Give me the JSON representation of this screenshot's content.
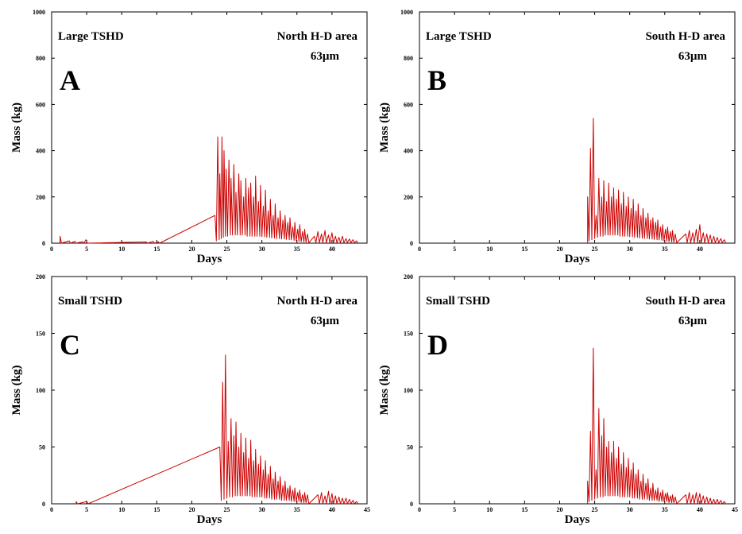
{
  "chart_data": [
    {
      "type": "line",
      "panel_letter": "A",
      "vessel_label": "Large TSHD",
      "area_label": "North H-D area",
      "grain_label": "63µm",
      "xlabel": "Days",
      "ylabel": "Mass (kg)",
      "xlim": [
        0,
        45
      ],
      "ylim": [
        0,
        1000
      ],
      "xticks": [
        0,
        5,
        10,
        15,
        20,
        25,
        30,
        35,
        40
      ],
      "yticks": [
        0,
        200,
        400,
        600,
        800,
        1000
      ],
      "line_color": "#cc0000",
      "series": [
        {
          "x": [
            1.2,
            1.4,
            2.5,
            2.7,
            3.3,
            3.5,
            4.4,
            4.6,
            4.9,
            5.1,
            13.5,
            13.7,
            14.5,
            14.7,
            15.2,
            15.4,
            23.3,
            23.5,
            23.7,
            23.9,
            24.0,
            24.2,
            24.3,
            24.5,
            24.6,
            24.8,
            24.9,
            25.1,
            25.3,
            25.5,
            25.6,
            25.8,
            26.0,
            26.2,
            26.3,
            26.5,
            26.7,
            26.9,
            27.0,
            27.2,
            27.4,
            27.6,
            27.7,
            27.9,
            28.1,
            28.3,
            28.4,
            28.6,
            28.8,
            29.0,
            29.1,
            29.3,
            29.5,
            29.7,
            29.8,
            30.0,
            30.2,
            30.4,
            30.5,
            30.7,
            30.9,
            31.1,
            31.2,
            31.4,
            31.6,
            31.8,
            31.9,
            32.1,
            32.3,
            32.5,
            32.6,
            32.8,
            33.0,
            33.2,
            33.3,
            33.5,
            33.7,
            33.9,
            34.0,
            34.2,
            34.4,
            34.6,
            34.7,
            34.9,
            35.1,
            35.3,
            35.4,
            35.6,
            35.8,
            36.0,
            36.1,
            36.3,
            36.5,
            36.7,
            37.5,
            37.7,
            38.0,
            38.2,
            38.5,
            38.7,
            39.0,
            39.2,
            39.5,
            39.7,
            40.0,
            40.2,
            40.5,
            40.7,
            41.0,
            41.2,
            41.5,
            41.7,
            42.0,
            42.2,
            42.5,
            42.7,
            43.0,
            43.2,
            43.5,
            43.7
          ],
          "y": [
            30,
            0,
            10,
            0,
            8,
            0,
            6,
            0,
            15,
            0,
            5,
            0,
            8,
            0,
            6,
            0,
            120,
            10,
            460,
            15,
            300,
            20,
            460,
            25,
            400,
            30,
            320,
            30,
            360,
            35,
            280,
            35,
            340,
            35,
            220,
            35,
            300,
            35,
            270,
            35,
            200,
            35,
            280,
            30,
            240,
            30,
            260,
            30,
            200,
            30,
            290,
            30,
            180,
            30,
            250,
            28,
            160,
            28,
            230,
            25,
            140,
            25,
            190,
            22,
            120,
            22,
            170,
            20,
            110,
            20,
            140,
            18,
            100,
            18,
            120,
            16,
            90,
            15,
            110,
            14,
            70,
            12,
            90,
            10,
            60,
            8,
            80,
            6,
            50,
            5,
            60,
            4,
            40,
            2,
            30,
            2,
            50,
            2,
            40,
            2,
            55,
            2,
            35,
            2,
            45,
            2,
            30,
            2,
            25,
            2,
            30,
            2,
            20,
            2,
            18,
            2,
            15,
            1,
            10,
            0
          ]
        }
      ]
    },
    {
      "type": "line",
      "panel_letter": "B",
      "vessel_label": "Large TSHD",
      "area_label": "South H-D area",
      "grain_label": "63µm",
      "xlabel": "Days",
      "ylabel": "Mass (kg)",
      "xlim": [
        0,
        45
      ],
      "ylim": [
        0,
        1000
      ],
      "xticks": [
        0,
        5,
        10,
        15,
        20,
        25,
        30,
        35,
        40
      ],
      "yticks": [
        0,
        200,
        400,
        600,
        800,
        1000
      ],
      "line_color": "#cc0000",
      "series": [
        {
          "x": [
            24.0,
            24.2,
            24.4,
            24.6,
            24.8,
            25.0,
            25.2,
            25.4,
            25.6,
            25.8,
            26.0,
            26.2,
            26.3,
            26.5,
            26.7,
            26.9,
            27.0,
            27.2,
            27.4,
            27.6,
            27.7,
            27.9,
            28.1,
            28.3,
            28.4,
            28.6,
            28.8,
            29.0,
            29.1,
            29.3,
            29.5,
            29.7,
            29.8,
            30.0,
            30.2,
            30.4,
            30.5,
            30.7,
            30.9,
            31.1,
            31.2,
            31.4,
            31.6,
            31.8,
            31.9,
            32.1,
            32.3,
            32.5,
            32.6,
            32.8,
            33.0,
            33.2,
            33.3,
            33.5,
            33.7,
            33.9,
            34.0,
            34.2,
            34.4,
            34.6,
            34.7,
            34.9,
            35.1,
            35.3,
            35.4,
            35.6,
            35.8,
            36.0,
            36.1,
            36.3,
            36.5,
            36.7,
            38.0,
            38.2,
            38.5,
            38.7,
            39.0,
            39.2,
            39.5,
            39.7,
            40.0,
            40.2,
            40.5,
            40.7,
            41.0,
            41.2,
            41.5,
            41.7,
            42.0,
            42.2,
            42.5,
            42.7,
            43.0,
            43.2,
            43.5,
            43.7
          ],
          "y": [
            200,
            10,
            410,
            15,
            540,
            20,
            120,
            25,
            280,
            30,
            200,
            30,
            270,
            35,
            180,
            35,
            260,
            35,
            200,
            35,
            240,
            35,
            190,
            35,
            230,
            30,
            170,
            30,
            220,
            30,
            160,
            30,
            200,
            28,
            150,
            28,
            190,
            25,
            140,
            25,
            170,
            22,
            120,
            22,
            150,
            20,
            110,
            20,
            130,
            18,
            100,
            18,
            110,
            16,
            90,
            15,
            100,
            14,
            70,
            12,
            80,
            10,
            60,
            8,
            70,
            6,
            50,
            5,
            55,
            4,
            40,
            2,
            40,
            2,
            55,
            2,
            45,
            2,
            60,
            2,
            80,
            2,
            45,
            2,
            40,
            2,
            35,
            2,
            30,
            2,
            25,
            2,
            20,
            2,
            15,
            0
          ]
        }
      ]
    },
    {
      "type": "line",
      "panel_letter": "C",
      "vessel_label": "Small TSHD",
      "area_label": "North H-D area",
      "grain_label": "63µm",
      "xlabel": "Days",
      "ylabel": "Mass (kg)",
      "xlim": [
        0,
        45
      ],
      "ylim": [
        0,
        200
      ],
      "xticks": [
        0,
        5,
        10,
        15,
        20,
        25,
        30,
        35,
        40,
        45
      ],
      "yticks": [
        0,
        50,
        100,
        150,
        200
      ],
      "line_color": "#cc0000",
      "series": [
        {
          "x": [
            3.5,
            3.7,
            5.0,
            5.2,
            24.0,
            24.2,
            24.4,
            24.6,
            24.8,
            25.0,
            25.2,
            25.4,
            25.6,
            25.8,
            26.0,
            26.2,
            26.3,
            26.5,
            26.7,
            26.9,
            27.0,
            27.2,
            27.4,
            27.6,
            27.7,
            27.9,
            28.1,
            28.3,
            28.4,
            28.6,
            28.8,
            29.0,
            29.1,
            29.3,
            29.5,
            29.7,
            29.8,
            30.0,
            30.2,
            30.4,
            30.5,
            30.7,
            30.9,
            31.1,
            31.2,
            31.4,
            31.6,
            31.8,
            31.9,
            32.1,
            32.3,
            32.5,
            32.6,
            32.8,
            33.0,
            33.2,
            33.3,
            33.5,
            33.7,
            33.9,
            34.0,
            34.2,
            34.4,
            34.6,
            34.7,
            34.9,
            35.1,
            35.3,
            35.4,
            35.6,
            35.8,
            36.0,
            36.1,
            36.3,
            36.5,
            36.7,
            38.0,
            38.2,
            38.5,
            38.7,
            39.0,
            39.2,
            39.5,
            39.7,
            40.0,
            40.2,
            40.5,
            40.7,
            41.0,
            41.2,
            41.5,
            41.7,
            42.0,
            42.2,
            42.5,
            42.7,
            43.0,
            43.2,
            43.5,
            43.7
          ],
          "y": [
            2,
            0,
            2,
            0,
            50,
            3,
            107,
            4,
            131,
            5,
            55,
            6,
            75,
            6,
            60,
            7,
            72,
            7,
            50,
            7,
            62,
            7,
            45,
            7,
            58,
            7,
            40,
            7,
            56,
            6,
            38,
            6,
            48,
            6,
            35,
            6,
            42,
            6,
            30,
            5,
            38,
            5,
            26,
            5,
            33,
            4,
            22,
            4,
            28,
            4,
            20,
            4,
            24,
            3,
            16,
            3,
            20,
            3,
            14,
            3,
            16,
            2,
            12,
            2,
            14,
            2,
            10,
            2,
            12,
            1,
            8,
            1,
            10,
            1,
            8,
            0,
            8,
            0,
            10,
            0,
            7,
            0,
            11,
            0,
            9,
            0,
            7,
            0,
            6,
            0,
            5,
            0,
            5,
            0,
            4,
            0,
            3,
            0,
            2,
            0
          ]
        }
      ]
    },
    {
      "type": "line",
      "panel_letter": "D",
      "vessel_label": "Small TSHD",
      "area_label": "South H-D area",
      "grain_label": "63µm",
      "xlabel": "Days",
      "ylabel": "Mass (kg)",
      "xlim": [
        0,
        45
      ],
      "ylim": [
        0,
        200
      ],
      "xticks": [
        0,
        5,
        10,
        15,
        20,
        25,
        30,
        35,
        40,
        45
      ],
      "yticks": [
        0,
        50,
        100,
        150,
        200
      ],
      "line_color": "#cc0000",
      "series": [
        {
          "x": [
            24.0,
            24.2,
            24.4,
            24.6,
            24.8,
            25.0,
            25.2,
            25.4,
            25.6,
            25.8,
            26.0,
            26.2,
            26.3,
            26.5,
            26.7,
            26.9,
            27.0,
            27.2,
            27.4,
            27.6,
            27.7,
            27.9,
            28.1,
            28.3,
            28.4,
            28.6,
            28.8,
            29.0,
            29.1,
            29.3,
            29.5,
            29.7,
            29.8,
            30.0,
            30.2,
            30.4,
            30.5,
            30.7,
            30.9,
            31.1,
            31.2,
            31.4,
            31.6,
            31.8,
            31.9,
            32.1,
            32.3,
            32.5,
            32.6,
            32.8,
            33.0,
            33.2,
            33.3,
            33.5,
            33.7,
            33.9,
            34.0,
            34.2,
            34.4,
            34.6,
            34.7,
            34.9,
            35.1,
            35.3,
            35.4,
            35.6,
            35.8,
            36.0,
            36.1,
            36.3,
            36.5,
            36.7,
            38.0,
            38.2,
            38.5,
            38.7,
            39.0,
            39.2,
            39.5,
            39.7,
            40.0,
            40.2,
            40.5,
            40.7,
            41.0,
            41.2,
            41.5,
            41.7,
            42.0,
            42.2,
            42.5,
            42.7,
            43.0,
            43.2,
            43.5,
            43.7
          ],
          "y": [
            20,
            2,
            64,
            3,
            137,
            4,
            30,
            5,
            84,
            6,
            60,
            6,
            75,
            7,
            50,
            7,
            55,
            7,
            45,
            7,
            55,
            7,
            40,
            7,
            50,
            6,
            35,
            6,
            45,
            6,
            32,
            6,
            40,
            6,
            30,
            5,
            36,
            5,
            26,
            5,
            30,
            4,
            20,
            4,
            26,
            4,
            18,
            4,
            22,
            3,
            14,
            3,
            18,
            3,
            12,
            3,
            14,
            2,
            10,
            2,
            12,
            2,
            9,
            2,
            10,
            1,
            7,
            1,
            8,
            1,
            6,
            0,
            8,
            0,
            10,
            0,
            8,
            0,
            10,
            0,
            9,
            0,
            7,
            0,
            6,
            0,
            5,
            0,
            4,
            0,
            4,
            0,
            3,
            0,
            2,
            0
          ]
        }
      ]
    }
  ]
}
